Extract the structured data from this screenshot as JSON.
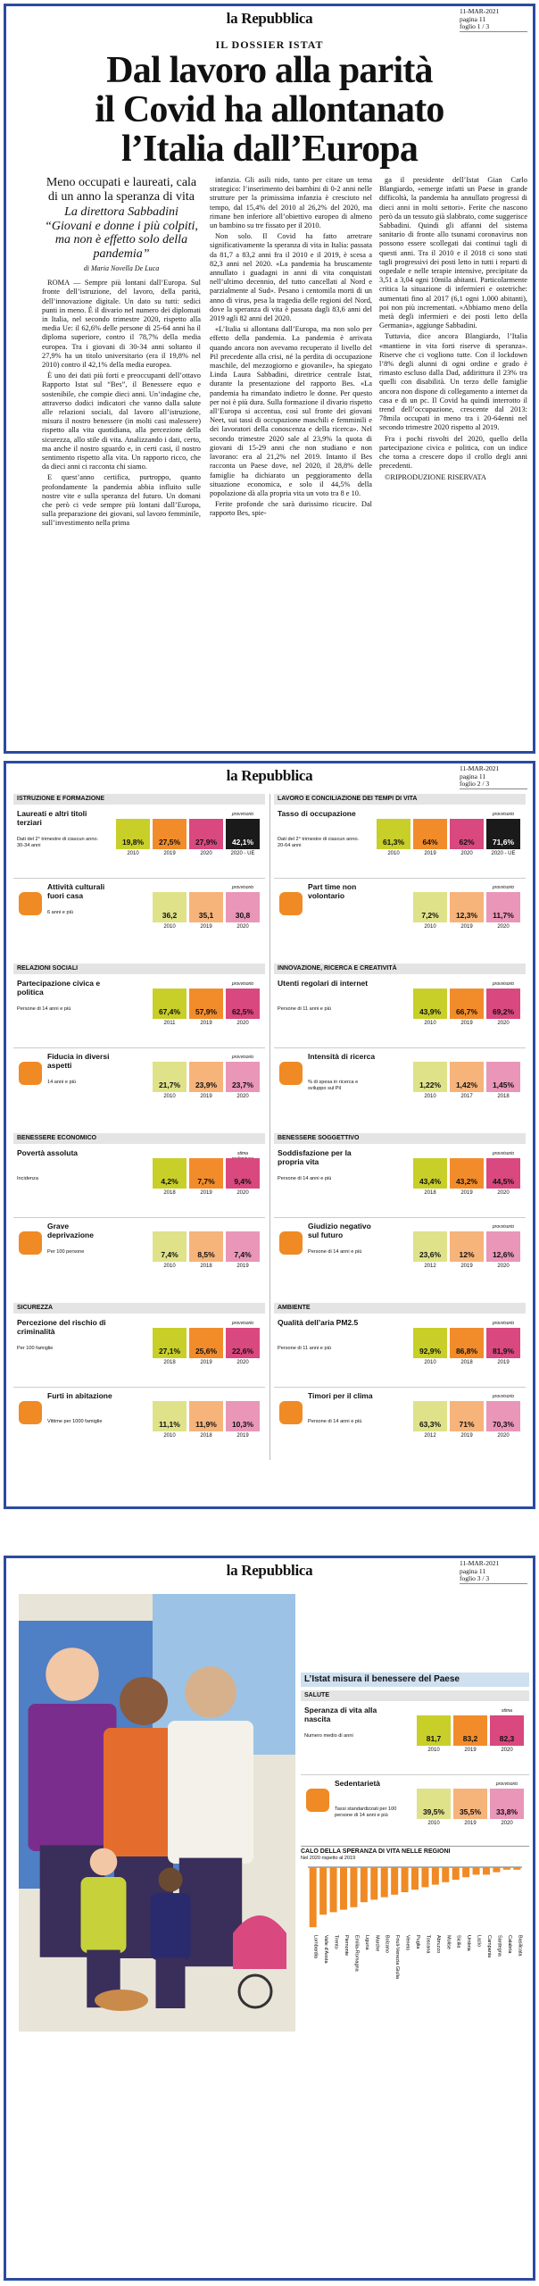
{
  "pages": [
    {
      "masthead": "la Repubblica",
      "date": "11-MAR-2021",
      "page": "pagina 11",
      "sheet": "foglio 1 / 3"
    },
    {
      "masthead": "la Repubblica",
      "date": "11-MAR-2021",
      "page": "pagina 11",
      "sheet": "foglio 2 / 3"
    },
    {
      "masthead": "la Repubblica",
      "date": "11-MAR-2021",
      "page": "pagina 11",
      "sheet": "foglio 3 / 3"
    }
  ],
  "article": {
    "kicker": "IL DOSSIER ISTAT",
    "headline": [
      "Dal lavoro alla parità",
      "il Covid ha allontanato",
      "l’Italia dall’Europa"
    ],
    "deck": [
      "Meno occupati e laureati, cala di un anno la speranza di vita",
      "La direttora Sabbadini “Giovani e donne i più colpiti, ma non è effetto solo della pandemia”"
    ],
    "byline": "di Maria Novella De Luca",
    "columns": [
      [
        "ROMA — Sempre più lontani dall’Europa. Sul fronte dell’istruzione, del lavoro, della parità, dell’innovazione digitale. Un dato su tutti: sedici punti in meno. È il divario nel numero dei diplomati in Italia, nel secondo trimestre 2020, rispetto alla media Ue: il 62,6% delle persone di 25-64 anni ha il diploma superiore, contro il 78,7% della media europea. Tra i giovani di 30-34 anni soltanto il 27,9% ha un titolo universitario (era il 19,8% nel 2010) contro il 42,1% della media europea.",
        "È uno dei dati più forti e preoccupanti dell’ottavo Rapporto Istat sul “Bes”, il Benessere equo e sostenibile, che compie dieci anni. Un’indagine che, attraverso dodici indicatori che vanno dalla salute alle relazioni sociali, dal lavoro all’istruzione, misura il nostro benessere (in molti casi malessere) rispetto alla vita quotidiana, alla percezione della sicurezza, allo stile di vita. Analizzando i dati, certo, ma anche il nostro sguardo e, in certi casi, il nostro sentimento rispetto alla vita. Un rapporto ricco, che da dieci anni ci racconta chi siamo.",
        "E quest’anno certifica, purtroppo, quanto profondamente la pandemia abbia influito sulle nostre vite e sulla speranza del futuro. Un domani che però ci vede sempre più lontani dall’Europa, sulla preparazione dei giovani, sul lavoro femminile, sull’investimento nella prima"
      ],
      [
        "infanzia. Gli asili nido, tanto per citare un tema strategico: l’inserimento dei bambini di 0-2 anni nelle strutture per la primissima infanzia è cresciuto nel tempo, dal 15,4% del 2010 al 26,2% del 2020, ma rimane ben inferiore all’obiettivo europeo di almeno un bambino su tre fissato per il 2010.",
        "Non solo. Il Covid ha fatto arretrare significativamente la speranza di vita in Italia: passata da 81,7 a 83,2 anni fra il 2010 e il 2019, è scesa a 82,3 anni nel 2020. «La pandemia ha bruscamente annullato i guadagni in anni di vita conquistati nell’ultimo decennio, del tutto cancellati al Nord e parzialmente al Sud». Pesano i centomila morti di un anno di virus, pesa la tragedia delle regioni del Nord, dove la speranza di vita è passata dagli 83,6 anni del 2019 agli 82 anni del 2020.",
        "«L’Italia si allontana dall’Europa, ma non solo per effetto della pandemia. La pandemia è arrivata quando ancora non avevamo recuperato il livello del Pil precedente alla crisi, né la perdita di occupazione maschile, del mezzogiorno e giovanile», ha spiegato Linda Laura Sabbadini, direttrice centrale Istat, durante la presentazione del rapporto Bes. «La pandemia ha rimandato indietro le donne. Per questo per noi è più dura. Sulla formazione il divario rispetto all’Europa si accentua, così sul fronte dei giovani Neet, sui tassi di occupazione maschili e femminili e dei lavoratori della conoscenza e della ricerca». Nel secondo trimestre 2020 sale al 23,9% la quota di giovani di 15-29 anni che non studiano e non lavorano: era al 21,2% nel 2019. Intanto il Bes racconta un Paese dove, nel 2020, il 28,8% delle famiglie ha dichiarato un peggioramento della situazione economica, e solo il 44,5% della popolazione dà alla propria vita un voto tra 8 e 10.",
        "Ferite profonde che sarà durissimo ricucire. Dal rapporto Bes, spie-"
      ],
      [
        "ga il presidente dell’Istat Gian Carlo Blangiardo, «emerge infatti un Paese in grande difficoltà, la pandemia ha annullato progressi di dieci anni in molti settori». Ferite che nascono però da un tessuto già slabbrato, come suggerisce Sabbadini. Quindi gli affanni del sistema sanitario di fronte allo tsunami coronavirus non possono essere scollegati dai continui tagli di questi anni. Tra il 2010 e il 2018 ci sono stati tagli progressivi dei posti letto in tutti i reparti di ospedale e nelle terapie intensive, precipitate da 3,51 a 3,04 ogni 10mila abitanti. Particolarmente critica la situazione di infermieri e ostetriche: aumentati fino al 2017 (6,1 ogni 1.000 abitanti), poi non più incrementati. «Abbiamo meno della metà degli infermieri e dei posti letto della Germania», aggiunge Sabbadini.",
        "Tuttavia, dice ancora Blangiardo, l’Italia «mantiene in vita forti riserve di speranza». Riserve che ci vogliono tutte. Con il lockdown l’8% degli alunni di ogni ordine e grado è rimasto escluso dalla Dad, addirittura il 23% tra quelli con disabilità. Un terzo delle famiglie ancora non dispone di collegamento a internet da casa e di un pc. Il Covid ha quindi interrotto il trend dell’occupazione, crescente dal 2013: 78mila occupati in meno tra i 20-64enni nel secondo trimestre 2020 rispetto al 2019.",
        "Fra i pochi risvolti del 2020, quello della partecipazione civica e politica, con un indice che torna a crescere dopo il crollo degli anni precedenti.",
        "©RIPRODUZIONE RISERVATA"
      ]
    ]
  },
  "infographic": {
    "sections": [
      {
        "title": "ISTRUZIONE E FORMAZIONE",
        "indicators": [
          {
            "name": "Laureati e altri titoli terziari",
            "note": "Dati del 2° trimestre di ciascun anno. 30-34 anni",
            "flag": "provvisorio",
            "values": [
              "19,8%",
              "27,5%",
              "27,9%",
              "42,1%"
            ],
            "years": [
              "2010",
              "2019",
              "2020",
              "2020 - UE"
            ]
          },
          {
            "name": "Attività culturali fuori casa",
            "note": "6 anni e più",
            "flag": "provvisorio",
            "values": [
              "36,2",
              "35,1",
              "30,8"
            ],
            "years": [
              "2010",
              "2019",
              "2020"
            ]
          }
        ]
      },
      {
        "title": "LAVORO E CONCILIAZIONE DEI TEMPI DI VITA",
        "indicators": [
          {
            "name": "Tasso di occupazione",
            "note": "Dati del 2° trimestre di ciascun anno. 20-64 anni",
            "flag": "provvisorio",
            "values": [
              "61,3%",
              "64%",
              "62%",
              "71,6%"
            ],
            "years": [
              "2010",
              "2019",
              "2020",
              "2020 - UE"
            ]
          },
          {
            "name": "Part time non volontario",
            "note": "",
            "flag": "provvisorio",
            "values": [
              "7,2%",
              "12,3%",
              "11,7%"
            ],
            "years": [
              "2010",
              "2019",
              "2020"
            ]
          }
        ]
      },
      {
        "title": "RELAZIONI SOCIALI",
        "indicators": [
          {
            "name": "Partecipazione civica e politica",
            "note": "Persone di 14 anni e più",
            "flag": "provvisorio",
            "values": [
              "67,4%",
              "57,9%",
              "62,5%"
            ],
            "years": [
              "2011",
              "2019",
              "2020"
            ]
          },
          {
            "name": "Fiducia in diversi aspetti",
            "note": "14 anni e più",
            "flag": "provvisorio",
            "values": [
              "21,7%",
              "23,9%",
              "23,7%"
            ],
            "years": [
              "2010",
              "2019",
              "2020"
            ]
          }
        ]
      },
      {
        "title": "INNOVAZIONE, RICERCA E CREATIVITÀ",
        "indicators": [
          {
            "name": "Utenti regolari di internet",
            "note": "Persone di 11 anni e più",
            "flag": "provvisorio",
            "values": [
              "43,9%",
              "66,7%",
              "69,2%"
            ],
            "years": [
              "2010",
              "2019",
              "2020"
            ]
          },
          {
            "name": "Intensità di ricerca",
            "note": "% di spesa in ricerca e sviluppo sul Pil",
            "flag": "",
            "values": [
              "1,22%",
              "1,42%",
              "1,45%"
            ],
            "years": [
              "2010",
              "2017",
              "2018"
            ]
          }
        ]
      },
      {
        "title": "BENESSERE ECONOMICO",
        "indicators": [
          {
            "name": "Povertà assoluta",
            "note": "Incidenza",
            "flag": "stima preliminare",
            "values": [
              "4,2%",
              "7,7%",
              "9,4%"
            ],
            "years": [
              "2018",
              "2019",
              "2020"
            ]
          },
          {
            "name": "Grave deprivazione",
            "note": "Per 100 persone",
            "flag": "",
            "values": [
              "7,4%",
              "8,5%",
              "7,4%"
            ],
            "years": [
              "2010",
              "2018",
              "2019"
            ]
          }
        ]
      },
      {
        "title": "BENESSERE SOGGETTIVO",
        "indicators": [
          {
            "name": "Soddisfazione per la propria vita",
            "note": "Persone di 14 anni e più",
            "flag": "provvisorio",
            "values": [
              "43,4%",
              "43,2%",
              "44,5%"
            ],
            "years": [
              "2018",
              "2019",
              "2020"
            ]
          },
          {
            "name": "Giudizio negativo sul futuro",
            "note": "Persone di 14 anni e più",
            "flag": "provvisorio",
            "values": [
              "23,6%",
              "12%",
              "12,6%"
            ],
            "years": [
              "2012",
              "2019",
              "2020"
            ]
          }
        ]
      },
      {
        "title": "SICUREZZA",
        "indicators": [
          {
            "name": "Percezione del rischio di criminalità",
            "note": "Per 100 famiglie",
            "flag": "provvisorio",
            "values": [
              "27,1%",
              "25,6%",
              "22,6%"
            ],
            "years": [
              "2018",
              "2019",
              "2020"
            ]
          },
          {
            "name": "Furti in abitazione",
            "note": "Vittime per 1000 famiglie",
            "flag": "",
            "values": [
              "11,1%",
              "11,9%",
              "10,3%"
            ],
            "years": [
              "2010",
              "2018",
              "2019"
            ]
          }
        ]
      },
      {
        "title": "AMBIENTE",
        "indicators": [
          {
            "name": "Qualità dell’aria PM2.5",
            "note": "Persone di 11 anni e più",
            "flag": "provvisorio",
            "values": [
              "92,9%",
              "86,8%",
              "81,9%"
            ],
            "years": [
              "2010",
              "2018",
              "2019"
            ]
          },
          {
            "name": "Timori per il clima",
            "note": "Persone di 14 anni e più",
            "flag": "provvisorio",
            "values": [
              "63,3%",
              "71%",
              "70,3%"
            ],
            "years": [
              "2012",
              "2019",
              "2020"
            ]
          }
        ]
      }
    ]
  },
  "panel": {
    "title": "L’Istat misura il benessere del Paese",
    "section": {
      "title": "SALUTE",
      "indicators": [
        {
          "name": "Speranza di vita alla nascita",
          "note": "Numero medio di anni",
          "flag": "stima",
          "values": [
            "81,7",
            "83,2",
            "82,3"
          ],
          "years": [
            "2010",
            "2019",
            "2020"
          ]
        },
        {
          "name": "Sedentarietà",
          "note": "Tassi standardizzati per 100 persone di 14 anni e più",
          "flag": "provvisorio",
          "values": [
            "39,5%",
            "35,5%",
            "33,8%"
          ],
          "years": [
            "2010",
            "2019",
            "2020"
          ]
        }
      ]
    }
  },
  "chart_data": {
    "type": "bar",
    "title": "CALO DELLA SPERANZA DI VITA NELLE REGIONI",
    "subtitle": "Nel 2020 rispetto al 2019",
    "categories": [
      "Lombardia",
      "Valle d'Aosta",
      "Trento",
      "Piemonte",
      "Emilia-Romagna",
      "Liguria",
      "Marche",
      "Bolzano",
      "Friuli-Venezia Giulia",
      "Veneto",
      "Puglia",
      "Toscana",
      "Abruzzo",
      "Molise",
      "Sicilia",
      "Umbria",
      "Lazio",
      "Campania",
      "Sardegna",
      "Calabria",
      "Basilicata"
    ],
    "values": [
      -2.4,
      -1.9,
      -1.8,
      -1.7,
      -1.6,
      -1.4,
      -1.3,
      -1.2,
      -1.1,
      -1.0,
      -0.9,
      -0.8,
      -0.7,
      -0.6,
      -0.5,
      -0.4,
      -0.3,
      -0.3,
      -0.2,
      -0.1,
      -0.1
    ],
    "color": "#f08a24",
    "ylim": [
      -2.5,
      0
    ]
  }
}
